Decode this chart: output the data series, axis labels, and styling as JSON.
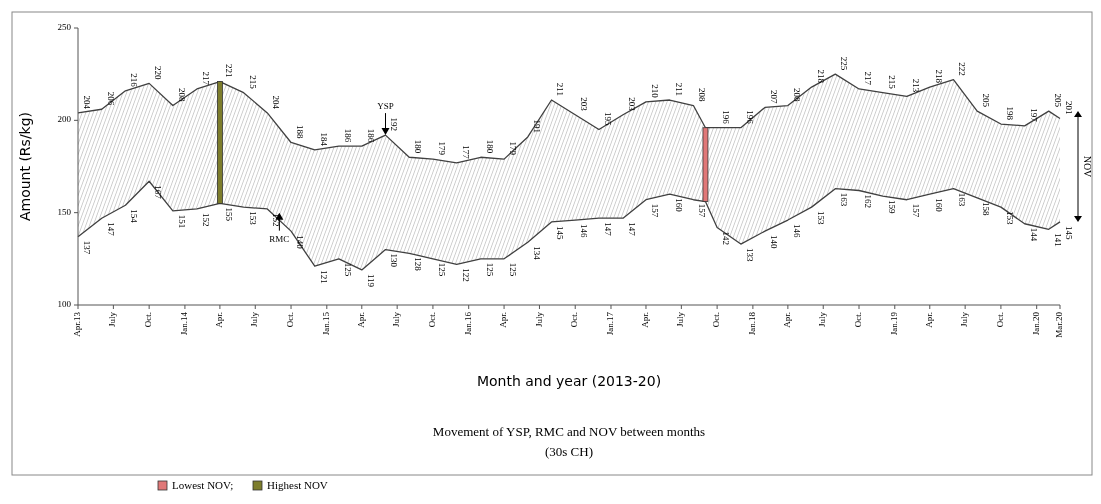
{
  "chart_data": {
    "type": "line",
    "title": "Movement of YSP, RMC and NOV between months",
    "subtitle": "(30s CH)",
    "xlabel": "Month and year (2013-20)",
    "ylabel": "Amount (Rs/kg)",
    "xlim": [
      "2013-04",
      "2020-03"
    ],
    "xticks": [
      {
        "value": "2013-04",
        "label": "Apr.13"
      },
      {
        "value": "2013-07",
        "label": "July"
      },
      {
        "value": "2013-10",
        "label": "Oct."
      },
      {
        "value": "2014-01",
        "label": "Jan.14"
      },
      {
        "value": "2014-04",
        "label": "Apr."
      },
      {
        "value": "2014-07",
        "label": "July"
      },
      {
        "value": "2014-10",
        "label": "Oct."
      },
      {
        "value": "2015-01",
        "label": "Jan.15"
      },
      {
        "value": "2015-04",
        "label": "Apr."
      },
      {
        "value": "2015-07",
        "label": "July"
      },
      {
        "value": "2015-10",
        "label": "Oct."
      },
      {
        "value": "2016-01",
        "label": "Jan.16"
      },
      {
        "value": "2016-04",
        "label": "Apr."
      },
      {
        "value": "2016-07",
        "label": "July"
      },
      {
        "value": "2016-10",
        "label": "Oct."
      },
      {
        "value": "2017-01",
        "label": "Jan.17"
      },
      {
        "value": "2017-04",
        "label": "Apr."
      },
      {
        "value": "2017-07",
        "label": "July"
      },
      {
        "value": "2017-10",
        "label": "Oct."
      },
      {
        "value": "2018-01",
        "label": "Jan.18"
      },
      {
        "value": "2018-04",
        "label": "Apr."
      },
      {
        "value": "2018-07",
        "label": "July"
      },
      {
        "value": "2018-10",
        "label": "Oct."
      },
      {
        "value": "2019-01",
        "label": "Jan.19"
      },
      {
        "value": "2019-04",
        "label": "Apr."
      },
      {
        "value": "2019-07",
        "label": "July"
      },
      {
        "value": "2019-10",
        "label": "Oct."
      },
      {
        "value": "2020-01",
        "label": "Jan.20"
      },
      {
        "value": "2020-03",
        "label": "Mar.20"
      }
    ],
    "ylim": [
      100,
      250
    ],
    "yticks": [
      100,
      150,
      200,
      250
    ],
    "grid": false,
    "legend": "bottom left",
    "marker": "none",
    "line_style": "solid",
    "series": [
      {
        "color": "#404040",
        "x": [
          "2013-04",
          "2013-06",
          "2013-08",
          "2013-10",
          "2013-12",
          "2014-02",
          "2014-04",
          "2014-06",
          "2014-08",
          "2014-10",
          "2014-12",
          "2015-02",
          "2015-04",
          "2015-06",
          "2015-08",
          "2015-10",
          "2015-12",
          "2016-02",
          "2016-04",
          "2016-06",
          "2016-08",
          "2016-10",
          "2016-12",
          "2017-02",
          "2017-04",
          "2017-06",
          "2017-08",
          "2017-09",
          "2017-10",
          "2017-12",
          "2018-02",
          "2018-04",
          "2018-06",
          "2018-08",
          "2018-10",
          "2018-12",
          "2019-02",
          "2019-04",
          "2019-06",
          "2019-08",
          "2019-10",
          "2019-12",
          "2020-02",
          "2020-03"
        ],
        "values": [
          204,
          206,
          216,
          220,
          208,
          217,
          221,
          215,
          204,
          188,
          184,
          186,
          186,
          192,
          180,
          179,
          177,
          180,
          179,
          191,
          211,
          203,
          195,
          203,
          210,
          211,
          208,
          196,
          196,
          196,
          207,
          208,
          218,
          225,
          217,
          215,
          213,
          218,
          222,
          205,
          198,
          197,
          205,
          201
        ],
        "value_labels": [
          "204",
          "206",
          "216",
          "220",
          "208",
          "217",
          "221",
          "215",
          "204",
          "188",
          "184",
          "186",
          "186",
          "192",
          "180",
          "179",
          "177",
          "180",
          "179",
          "191",
          "211",
          "203",
          "195",
          "203",
          "210",
          "211",
          "208",
          null,
          "196",
          "196",
          "207",
          "208",
          "218",
          "225",
          "217",
          "215",
          "213",
          "218",
          "222",
          "205",
          "198",
          "197",
          "205",
          "201"
        ]
      },
      {
        "color": "#404040",
        "x": [
          "2013-04",
          "2013-06",
          "2013-08",
          "2013-10",
          "2013-12",
          "2014-02",
          "2014-04",
          "2014-06",
          "2014-08",
          "2014-10",
          "2014-12",
          "2015-02",
          "2015-04",
          "2015-06",
          "2015-08",
          "2015-10",
          "2015-12",
          "2016-02",
          "2016-04",
          "2016-06",
          "2016-08",
          "2016-10",
          "2016-12",
          "2017-02",
          "2017-04",
          "2017-06",
          "2017-08",
          "2017-09",
          "2017-10",
          "2017-12",
          "2018-02",
          "2018-04",
          "2018-06",
          "2018-08",
          "2018-10",
          "2018-12",
          "2019-02",
          "2019-04",
          "2019-06",
          "2019-08",
          "2019-10",
          "2019-12",
          "2020-02",
          "2020-03"
        ],
        "values": [
          137,
          147,
          154,
          167,
          151,
          152,
          155,
          153,
          152,
          140,
          121,
          125,
          119,
          130,
          128,
          125,
          122,
          125,
          125,
          134,
          145,
          146,
          147,
          147,
          157,
          160,
          157,
          156,
          142,
          133,
          140,
          146,
          153,
          163,
          162,
          159,
          157,
          160,
          163,
          158,
          153,
          144,
          141,
          145
        ],
        "value_labels": [
          "137",
          "147",
          "154",
          "167",
          "151",
          "152",
          "155",
          "153",
          "152",
          "140",
          "121",
          "125",
          "119",
          "130",
          "128",
          "125",
          "122",
          "125",
          "125",
          "134",
          "145",
          "146",
          "147",
          "147",
          "157",
          "160",
          "157",
          null,
          "142",
          "133",
          "140",
          "146",
          "153",
          "163",
          "162",
          "159",
          "157",
          "160",
          "163",
          "158",
          "153",
          "144",
          "141",
          "145"
        ]
      },
      {
        "type": "bar",
        "name": "Lowest NOV;",
        "color": "#e07878",
        "x": [
          "2017-09"
        ],
        "base": [
          156
        ],
        "values": [
          40
        ]
      },
      {
        "type": "bar",
        "name": "Highest NOV",
        "color": "#7d7d2c",
        "x": [
          "2014-04"
        ],
        "base": [
          155
        ],
        "values": [
          66
        ]
      }
    ],
    "annotations": [
      {
        "text": "YSP",
        "x": "2015-06",
        "y": 192
      },
      {
        "text": "RMC",
        "x": "2014-09",
        "y": 150
      },
      "NOV"
    ]
  }
}
